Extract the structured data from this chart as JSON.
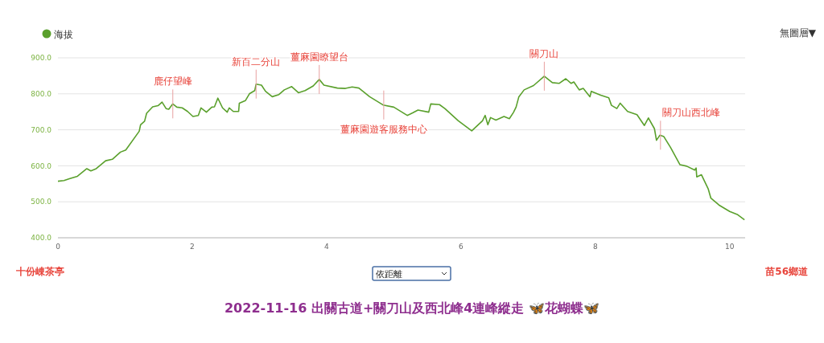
{
  "chart_data": {
    "type": "line",
    "title": "2022-11-16 出關古道+關刀山及西北峰4連峰縱走 🦋花蝴蝶🦋",
    "legend": "top left",
    "grid": "y",
    "marker": "none",
    "line_style": "solid",
    "xlim": [
      0,
      10.23
    ],
    "xticks": [
      0,
      2,
      4,
      6,
      8,
      10
    ],
    "ylim": [
      400,
      900
    ],
    "yticks": [
      {
        "value": 400,
        "label": "400.0"
      },
      {
        "value": 500,
        "label": "500.0"
      },
      {
        "value": 600,
        "label": "600.0"
      },
      {
        "value": 700,
        "label": "700.0"
      },
      {
        "value": 800,
        "label": "800.0"
      },
      {
        "value": 900,
        "label": "900.0"
      }
    ],
    "series": [
      {
        "name": "海拔",
        "color": "#5aa02c",
        "x": [
          0,
          0.09,
          0.17,
          0.29,
          0.43,
          0.49,
          0.57,
          0.71,
          0.81,
          0.93,
          1.01,
          1.21,
          1.23,
          1.29,
          1.32,
          1.41,
          1.49,
          1.55,
          1.61,
          1.65,
          1.71,
          1.77,
          1.85,
          1.93,
          2.01,
          2.09,
          2.13,
          2.21,
          2.29,
          2.33,
          2.38,
          2.45,
          2.52,
          2.55,
          2.61,
          2.69,
          2.7,
          2.79,
          2.85,
          2.93,
          2.95,
          3.03,
          3.09,
          3.19,
          3.29,
          3.37,
          3.48,
          3.58,
          3.68,
          3.8,
          3.89,
          3.96,
          4.16,
          4.28,
          4.38,
          4.48,
          4.64,
          4.84,
          5.0,
          5.2,
          5.28,
          5.36,
          5.52,
          5.55,
          5.68,
          5.76,
          5.96,
          6.16,
          6.24,
          6.32,
          6.36,
          6.4,
          6.44,
          6.52,
          6.64,
          6.72,
          6.78,
          6.82,
          6.86,
          6.94,
          7.08,
          7.24,
          7.36,
          7.46,
          7.56,
          7.64,
          7.68,
          7.76,
          7.82,
          7.92,
          7.94,
          8.08,
          8.2,
          8.24,
          8.32,
          8.37,
          8.48,
          8.62,
          8.73,
          8.79,
          8.88,
          8.91,
          8.96,
          9.02,
          9.12,
          9.26,
          9.36,
          9.48,
          9.5,
          9.51,
          9.58,
          9.68,
          9.72,
          9.84,
          10.0,
          10.12,
          10.22
        ],
        "values": [
          557,
          559,
          564,
          571,
          592,
          586,
          592,
          614,
          618,
          638,
          644,
          696,
          714,
          724,
          746,
          764,
          767,
          777,
          759,
          757,
          772,
          763,
          761,
          751,
          737,
          740,
          761,
          749,
          763,
          764,
          788,
          761,
          749,
          761,
          751,
          751,
          774,
          781,
          800,
          809,
          827,
          824,
          807,
          792,
          798,
          811,
          820,
          803,
          809,
          822,
          840,
          824,
          816,
          815,
          819,
          816,
          792,
          769,
          763,
          740,
          747,
          755,
          749,
          772,
          770,
          759,
          725,
          697,
          711,
          725,
          740,
          714,
          734,
          727,
          737,
          731,
          748,
          763,
          791,
          811,
          823,
          849,
          831,
          829,
          842,
          829,
          833,
          811,
          815,
          792,
          807,
          796,
          789,
          768,
          759,
          774,
          751,
          742,
          712,
          733,
          703,
          671,
          685,
          681,
          651,
          603,
          599,
          588,
          594,
          569,
          575,
          536,
          510,
          491,
          473,
          464,
          450
        ]
      }
    ],
    "annotations": [
      {
        "text": "鹿仔望峰",
        "x": 1.71,
        "y": 772
      },
      {
        "text": "新百二分山",
        "x": 2.95,
        "y": 827
      },
      {
        "text": "薑麻園瞭望台",
        "x": 3.89,
        "y": 840
      },
      {
        "text": "薑麻園遊客服務中心",
        "x": 4.85,
        "y": 769
      },
      {
        "text": "關刀山",
        "x": 7.24,
        "y": 849
      },
      {
        "text": "關刀山西北峰",
        "x": 8.97,
        "y": 685
      },
      "十份崠茶亭",
      "苗56鄉道",
      "無圖層▼",
      "依距離"
    ]
  }
}
